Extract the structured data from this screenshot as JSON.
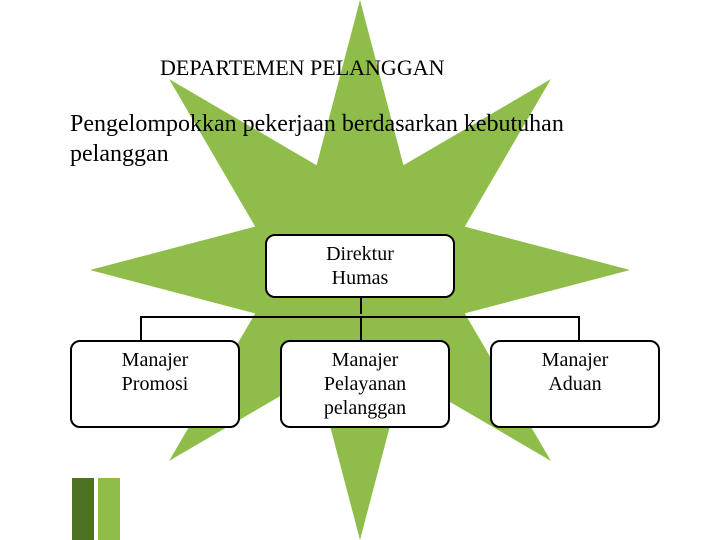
{
  "title": "DEPARTEMEN PELANGGAN",
  "subtitle": "Pengelompokkan pekerjaan berdasarkan kebutuhan pelanggan",
  "chart": {
    "type": "tree",
    "parent": {
      "label": "Direktur\nHumas"
    },
    "children": [
      {
        "label": "Manajer\nPromosi"
      },
      {
        "label": "Manajer\nPelayanan pelanggan"
      },
      {
        "label": "Manajer\nAduan"
      }
    ],
    "node_style": {
      "background": "#ffffff",
      "border_color": "#000000",
      "border_radius": 10,
      "font_size": 20,
      "text_color": "#000000"
    },
    "connector_color": "#000000"
  },
  "background_star": {
    "color": "#8ebd4a",
    "points": 8,
    "size": 520
  },
  "footer_bars": {
    "colors": [
      "#4e7224",
      "#8ebd4a"
    ],
    "width": 22,
    "height": 62
  },
  "page_background": "#ffffff"
}
